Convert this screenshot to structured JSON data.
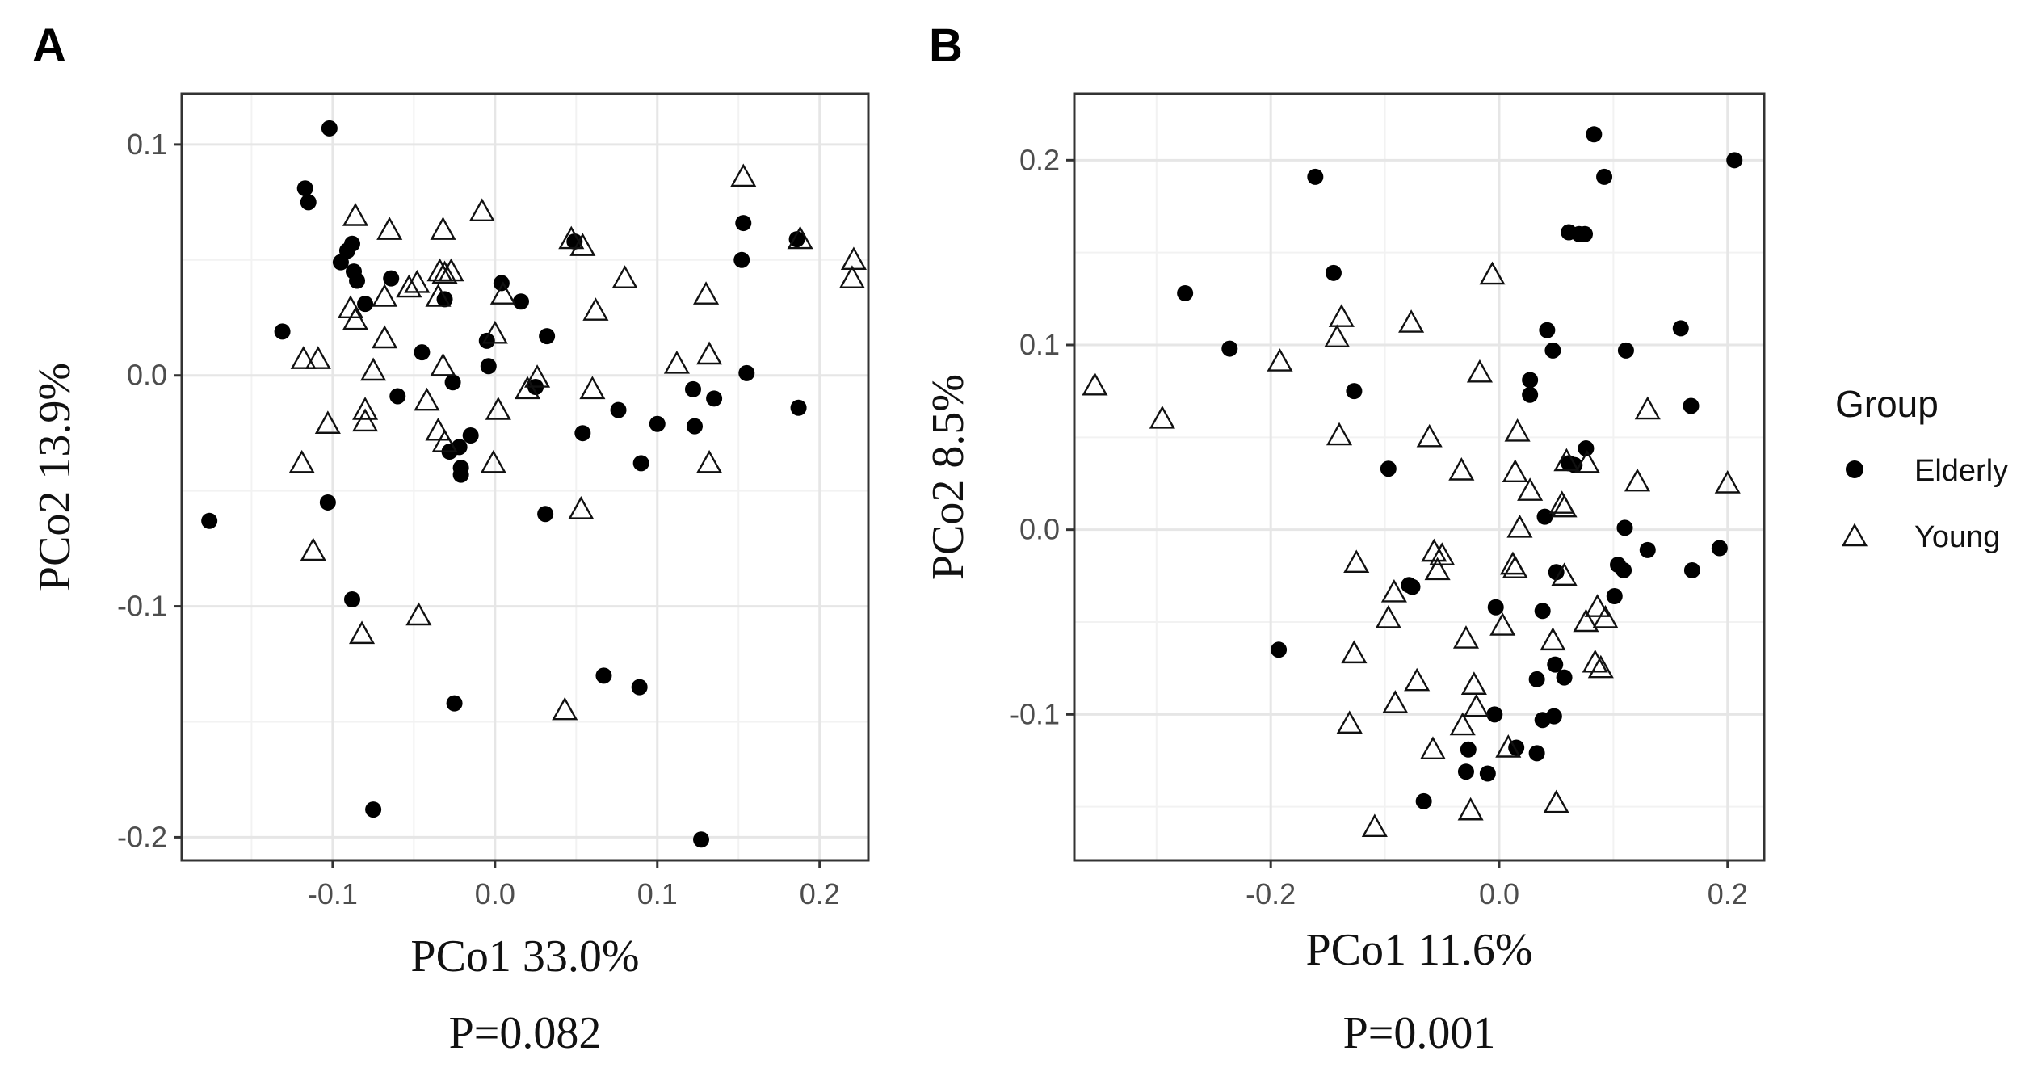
{
  "figure": {
    "legend": {
      "title": "Group",
      "entries": [
        {
          "label": "Elderly",
          "marker": "filled-circle"
        },
        {
          "label": "Young",
          "marker": "open-triangle"
        }
      ]
    }
  },
  "chart_data": [
    {
      "type": "scatter",
      "panel": "A",
      "xlabel": "PCo1 33.0%",
      "ylabel": "PCo2 13.9%",
      "pvalue": "P=0.082",
      "xlim": [
        -0.193,
        0.23
      ],
      "ylim": [
        -0.21,
        0.122
      ],
      "xticks": [
        -0.1,
        0.0,
        0.1,
        0.2
      ],
      "xtick_labels": [
        "-0.1",
        "0.0",
        "0.1",
        "0.2"
      ],
      "yticks": [
        -0.2,
        -0.1,
        0.0,
        0.1
      ],
      "ytick_labels": [
        "-0.2",
        "-0.1",
        "0.0",
        "0.1"
      ],
      "grid": true,
      "series": [
        {
          "name": "Elderly",
          "points": [
            [
              -0.102,
              0.107
            ],
            [
              -0.117,
              0.081
            ],
            [
              -0.115,
              0.075
            ],
            [
              -0.095,
              0.049
            ],
            [
              -0.091,
              0.054
            ],
            [
              -0.088,
              0.057
            ],
            [
              -0.087,
              0.045
            ],
            [
              -0.085,
              0.041
            ],
            [
              -0.08,
              0.031
            ],
            [
              -0.064,
              0.042
            ],
            [
              -0.031,
              0.033
            ],
            [
              0.004,
              0.04
            ],
            [
              0.016,
              0.032
            ],
            [
              -0.131,
              0.019
            ],
            [
              -0.045,
              0.01
            ],
            [
              -0.005,
              0.015
            ],
            [
              -0.004,
              0.004
            ],
            [
              0.032,
              0.017
            ],
            [
              -0.06,
              -0.009
            ],
            [
              -0.026,
              -0.003
            ],
            [
              0.025,
              -0.005
            ],
            [
              -0.028,
              -0.033
            ],
            [
              -0.022,
              -0.031
            ],
            [
              -0.021,
              -0.04
            ],
            [
              -0.021,
              -0.043
            ],
            [
              -0.015,
              -0.026
            ],
            [
              0.054,
              -0.025
            ],
            [
              0.076,
              -0.015
            ],
            [
              0.1,
              -0.021
            ],
            [
              0.09,
              -0.038
            ],
            [
              0.122,
              -0.006
            ],
            [
              0.123,
              -0.022
            ],
            [
              0.135,
              -0.01
            ],
            [
              0.152,
              0.05
            ],
            [
              0.153,
              0.066
            ],
            [
              0.155,
              0.001
            ],
            [
              0.187,
              -0.014
            ],
            [
              0.186,
              0.059
            ],
            [
              0.049,
              0.058
            ],
            [
              0.031,
              -0.06
            ],
            [
              -0.103,
              -0.055
            ],
            [
              -0.176,
              -0.063
            ],
            [
              -0.088,
              -0.097
            ],
            [
              -0.025,
              -0.142
            ],
            [
              0.067,
              -0.13
            ],
            [
              0.089,
              -0.135
            ],
            [
              -0.075,
              -0.188
            ],
            [
              0.127,
              -0.201
            ]
          ]
        },
        {
          "name": "Young",
          "points": [
            [
              -0.086,
              0.069
            ],
            [
              -0.065,
              0.063
            ],
            [
              -0.032,
              0.063
            ],
            [
              -0.008,
              0.071
            ],
            [
              0.047,
              0.059
            ],
            [
              0.054,
              0.056
            ],
            [
              0.153,
              0.086
            ],
            [
              0.188,
              0.059
            ],
            [
              0.221,
              0.05
            ],
            [
              0.22,
              0.042
            ],
            [
              -0.089,
              0.029
            ],
            [
              -0.086,
              0.024
            ],
            [
              -0.068,
              0.034
            ],
            [
              -0.053,
              0.038
            ],
            [
              -0.048,
              0.04
            ],
            [
              -0.034,
              0.045
            ],
            [
              -0.031,
              0.044
            ],
            [
              -0.027,
              0.045
            ],
            [
              -0.035,
              0.034
            ],
            [
              0.0,
              0.018
            ],
            [
              0.005,
              0.035
            ],
            [
              0.08,
              0.042
            ],
            [
              0.062,
              0.028
            ],
            [
              0.13,
              0.035
            ],
            [
              -0.118,
              0.007
            ],
            [
              -0.109,
              0.007
            ],
            [
              -0.068,
              0.016
            ],
            [
              -0.075,
              0.002
            ],
            [
              -0.032,
              0.004
            ],
            [
              -0.042,
              -0.011
            ],
            [
              0.02,
              -0.006
            ],
            [
              0.026,
              -0.001
            ],
            [
              0.06,
              -0.006
            ],
            [
              0.112,
              0.005
            ],
            [
              0.132,
              0.009
            ],
            [
              -0.103,
              -0.021
            ],
            [
              -0.08,
              -0.015
            ],
            [
              -0.08,
              -0.02
            ],
            [
              -0.035,
              -0.024
            ],
            [
              -0.031,
              -0.029
            ],
            [
              0.002,
              -0.015
            ],
            [
              -0.001,
              -0.038
            ],
            [
              -0.119,
              -0.038
            ],
            [
              -0.112,
              -0.076
            ],
            [
              0.053,
              -0.058
            ],
            [
              0.132,
              -0.038
            ],
            [
              -0.082,
              -0.112
            ],
            [
              -0.047,
              -0.104
            ],
            [
              0.043,
              -0.145
            ]
          ]
        }
      ]
    },
    {
      "type": "scatter",
      "panel": "B",
      "xlabel": "PCo1 11.6%",
      "ylabel": "PCo2 8.5%",
      "pvalue": "P=0.001",
      "xlim": [
        -0.372,
        0.232
      ],
      "ylim": [
        -0.179,
        0.236
      ],
      "xticks": [
        -0.2,
        0.0,
        0.2
      ],
      "xtick_labels": [
        "-0.2",
        "0.0",
        "0.2"
      ],
      "yticks": [
        -0.1,
        0.0,
        0.1,
        0.2
      ],
      "ytick_labels": [
        "-0.1",
        "0.0",
        "0.1",
        "0.2"
      ],
      "grid": true,
      "series": [
        {
          "name": "Elderly",
          "points": [
            [
              0.083,
              0.214
            ],
            [
              0.206,
              0.2
            ],
            [
              -0.161,
              0.191
            ],
            [
              0.092,
              0.191
            ],
            [
              0.061,
              0.161
            ],
            [
              0.07,
              0.16
            ],
            [
              0.075,
              0.16
            ],
            [
              -0.275,
              0.128
            ],
            [
              -0.145,
              0.139
            ],
            [
              -0.236,
              0.098
            ],
            [
              0.042,
              0.108
            ],
            [
              0.027,
              0.081
            ],
            [
              0.027,
              0.073
            ],
            [
              0.047,
              0.097
            ],
            [
              0.111,
              0.097
            ],
            [
              0.159,
              0.109
            ],
            [
              -0.127,
              0.075
            ],
            [
              0.168,
              0.067
            ],
            [
              -0.097,
              0.033
            ],
            [
              0.061,
              0.036
            ],
            [
              0.066,
              0.035
            ],
            [
              0.076,
              0.044
            ],
            [
              0.04,
              0.007
            ],
            [
              0.11,
              0.001
            ],
            [
              -0.193,
              -0.065
            ],
            [
              -0.076,
              -0.031
            ],
            [
              -0.079,
              -0.03
            ],
            [
              -0.003,
              -0.042
            ],
            [
              0.038,
              -0.044
            ],
            [
              0.104,
              -0.019
            ],
            [
              0.109,
              -0.022
            ],
            [
              0.13,
              -0.011
            ],
            [
              0.169,
              -0.022
            ],
            [
              0.193,
              -0.01
            ],
            [
              0.101,
              -0.036
            ],
            [
              0.05,
              -0.023
            ],
            [
              0.049,
              -0.073
            ],
            [
              0.057,
              -0.08
            ],
            [
              0.033,
              -0.081
            ],
            [
              -0.004,
              -0.1
            ],
            [
              0.038,
              -0.103
            ],
            [
              0.048,
              -0.101
            ],
            [
              -0.027,
              -0.119
            ],
            [
              0.015,
              -0.118
            ],
            [
              0.033,
              -0.121
            ],
            [
              -0.029,
              -0.131
            ],
            [
              -0.01,
              -0.132
            ],
            [
              -0.066,
              -0.147
            ]
          ]
        },
        {
          "name": "Young",
          "points": [
            [
              -0.354,
              0.078
            ],
            [
              -0.295,
              0.06
            ],
            [
              -0.192,
              0.091
            ],
            [
              -0.142,
              0.104
            ],
            [
              -0.138,
              0.115
            ],
            [
              -0.077,
              0.112
            ],
            [
              -0.006,
              0.138
            ],
            [
              -0.017,
              0.085
            ],
            [
              -0.14,
              0.051
            ],
            [
              -0.061,
              0.05
            ],
            [
              -0.033,
              0.032
            ],
            [
              0.016,
              0.053
            ],
            [
              0.014,
              0.031
            ],
            [
              0.121,
              0.026
            ],
            [
              0.13,
              0.065
            ],
            [
              0.2,
              0.025
            ],
            [
              0.027,
              0.021
            ],
            [
              0.018,
              0.001
            ],
            [
              0.055,
              0.014
            ],
            [
              0.057,
              0.012
            ],
            [
              0.059,
              0.037
            ],
            [
              0.077,
              0.036
            ],
            [
              -0.125,
              -0.018
            ],
            [
              -0.092,
              -0.034
            ],
            [
              -0.057,
              -0.012
            ],
            [
              -0.054,
              -0.022
            ],
            [
              -0.05,
              -0.014
            ],
            [
              0.012,
              -0.019
            ],
            [
              0.014,
              -0.021
            ],
            [
              0.057,
              -0.025
            ],
            [
              0.076,
              -0.05
            ],
            [
              0.086,
              -0.042
            ],
            [
              0.093,
              -0.048
            ],
            [
              -0.127,
              -0.067
            ],
            [
              -0.097,
              -0.048
            ],
            [
              0.003,
              -0.052
            ],
            [
              0.047,
              -0.06
            ],
            [
              0.084,
              -0.072
            ],
            [
              0.089,
              -0.075
            ],
            [
              -0.072,
              -0.082
            ],
            [
              -0.029,
              -0.059
            ],
            [
              -0.022,
              -0.084
            ],
            [
              -0.091,
              -0.094
            ],
            [
              -0.131,
              -0.105
            ],
            [
              -0.032,
              -0.106
            ],
            [
              -0.02,
              -0.096
            ],
            [
              -0.058,
              -0.119
            ],
            [
              0.008,
              -0.118
            ],
            [
              -0.025,
              -0.152
            ],
            [
              0.05,
              -0.148
            ],
            [
              -0.109,
              -0.161
            ]
          ]
        }
      ]
    }
  ]
}
